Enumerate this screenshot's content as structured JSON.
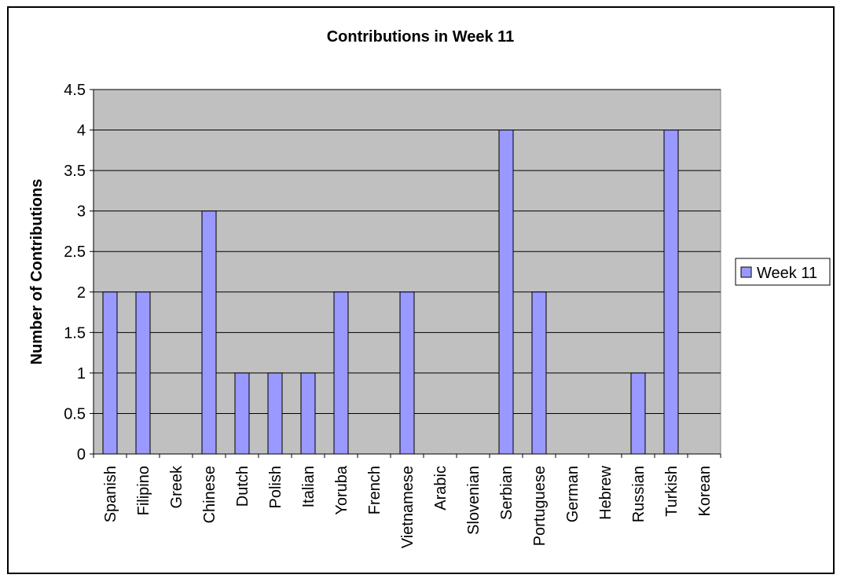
{
  "chart_data": {
    "type": "bar",
    "title": "Contributions in Week 11",
    "xlabel": "",
    "ylabel": "Number of Contributions",
    "categories": [
      "Spanish",
      "Filipino",
      "Greek",
      "Chinese",
      "Dutch",
      "Polish",
      "Italian",
      "Yoruba",
      "French",
      "Vietnamese",
      "Arabic",
      "Slovenian",
      "Serbian",
      "Portuguese",
      "German",
      "Hebrew",
      "Russian",
      "Turkish",
      "Korean"
    ],
    "series": [
      {
        "name": "Week 11",
        "values": [
          2,
          2,
          0,
          3,
          1,
          1,
          1,
          2,
          0,
          2,
          0,
          0,
          4,
          2,
          0,
          0,
          1,
          4,
          0
        ]
      }
    ],
    "ylim": [
      0,
      4.5
    ],
    "yticks": [
      0,
      0.5,
      1,
      1.5,
      2,
      2.5,
      3,
      3.5,
      4,
      4.5
    ],
    "ytick_labels": [
      "0",
      "0.5",
      "1",
      "1.5",
      "2",
      "2.5",
      "3",
      "3.5",
      "4",
      "4.5"
    ],
    "grid": true,
    "legend": "right",
    "colors": {
      "bar_fill": "#9999ff",
      "bar_stroke": "#000000",
      "plot_background": "#c0c0c0",
      "gridline": "#000000"
    }
  }
}
